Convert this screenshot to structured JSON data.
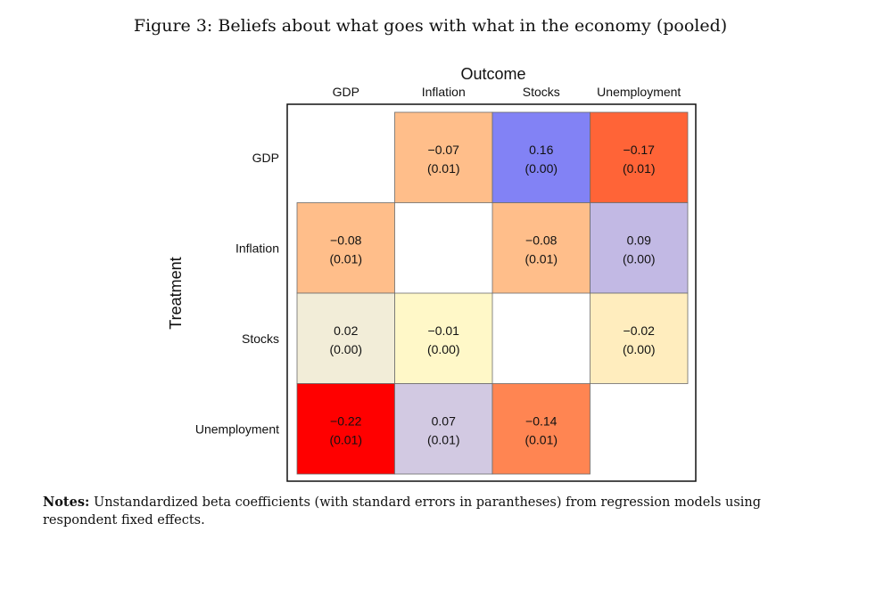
{
  "caption": "Figure 3: Beliefs about what goes with what in the economy (pooled)",
  "chart_data": {
    "type": "heatmap",
    "title": "Outcome",
    "xlabel": "Outcome",
    "ylabel": "Treatment",
    "columns": [
      "GDP",
      "Inflation",
      "Stocks",
      "Unemployment"
    ],
    "rows": [
      "GDP",
      "Inflation",
      "Stocks",
      "Unemployment"
    ],
    "cells": [
      [
        null,
        {
          "coef": "−0.07",
          "se": "(0.01)",
          "color": "#FFBE8A"
        },
        {
          "coef": "0.16",
          "se": "(0.00)",
          "color": "#8282F5"
        },
        {
          "coef": "−0.17",
          "se": "(0.01)",
          "color": "#FF6437"
        }
      ],
      [
        {
          "coef": "−0.08",
          "se": "(0.01)",
          "color": "#FFBE8A"
        },
        null,
        {
          "coef": "−0.08",
          "se": "(0.01)",
          "color": "#FFBE8A"
        },
        {
          "coef": "0.09",
          "se": "(0.00)",
          "color": "#C2B9E4"
        }
      ],
      [
        {
          "coef": "0.02",
          "se": "(0.00)",
          "color": "#F2EDD8"
        },
        {
          "coef": "−0.01",
          "se": "(0.00)",
          "color": "#FFF8C8"
        },
        null,
        {
          "coef": "−0.02",
          "se": "(0.00)",
          "color": "#FFEDBE"
        }
      ],
      [
        {
          "coef": "−0.22",
          "se": "(0.01)",
          "color": "#FF0000"
        },
        {
          "coef": "0.07",
          "se": "(0.01)",
          "color": "#D2C9E2"
        },
        {
          "coef": "−0.14",
          "se": "(0.01)",
          "color": "#FF8552"
        },
        null
      ]
    ]
  },
  "notes": {
    "label": "Notes:",
    "text": "Unstandardized beta coefficients (with standard errors in parantheses) from regression models using respondent fixed effects."
  }
}
